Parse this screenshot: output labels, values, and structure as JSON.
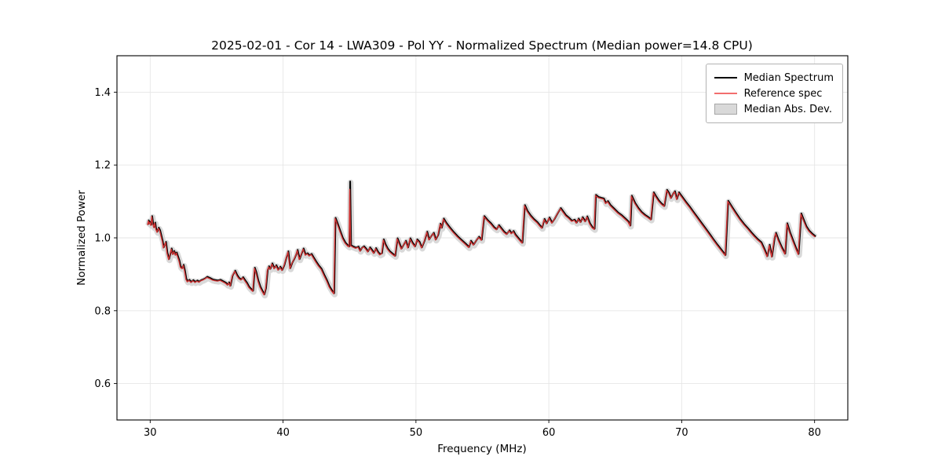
{
  "legend": {
    "items": [
      {
        "label": "Median Spectrum",
        "swatch": "line",
        "color": "#000000"
      },
      {
        "label": "Reference spec",
        "swatch": "line",
        "color": "#f26e6e"
      },
      {
        "label": "Median Abs. Dev.",
        "swatch": "patch",
        "color": "#d9d9d9",
        "edge_color": "#a6a6a6"
      }
    ]
  },
  "chart_data": {
    "type": "line",
    "title": "2025-02-01 - Cor 14 - LWA309 - Pol YY - Normalized Spectrum (Median power=14.8 CPU)",
    "xlabel": "Frequency (MHz)",
    "ylabel": "Normalized Power",
    "xlim": [
      27.5,
      82.5
    ],
    "ylim": [
      0.5,
      1.5
    ],
    "xticks": [
      30,
      40,
      50,
      60,
      70,
      80
    ],
    "yticks": [
      0.6,
      0.8,
      1.0,
      1.2,
      1.4
    ],
    "grid": true,
    "grid_color": "#e6e6e6",
    "spine_color": "#000000",
    "legend_position": "upper right",
    "series": [
      {
        "name": "Median Spectrum",
        "color": "#000000",
        "line_width": 2,
        "points": [
          [
            29.84,
            1.038
          ],
          [
            29.9,
            1.048
          ],
          [
            29.95,
            1.04
          ],
          [
            30.0,
            1.044
          ],
          [
            30.08,
            1.036
          ],
          [
            30.15,
            1.06
          ],
          [
            30.22,
            1.042
          ],
          [
            30.3,
            1.03
          ],
          [
            30.38,
            1.042
          ],
          [
            30.45,
            1.026
          ],
          [
            30.55,
            1.017
          ],
          [
            30.65,
            1.028
          ],
          [
            30.75,
            1.021
          ],
          [
            30.85,
            1.006
          ],
          [
            30.95,
            0.991
          ],
          [
            31.02,
            0.974
          ],
          [
            31.1,
            0.981
          ],
          [
            31.2,
            0.989
          ],
          [
            31.3,
            0.96
          ],
          [
            31.42,
            0.942
          ],
          [
            31.52,
            0.955
          ],
          [
            31.62,
            0.971
          ],
          [
            31.72,
            0.956
          ],
          [
            31.82,
            0.964
          ],
          [
            31.92,
            0.954
          ],
          [
            32.0,
            0.96
          ],
          [
            32.1,
            0.949
          ],
          [
            32.2,
            0.938
          ],
          [
            32.3,
            0.921
          ],
          [
            32.42,
            0.917
          ],
          [
            32.52,
            0.926
          ],
          [
            32.62,
            0.91
          ],
          [
            32.72,
            0.888
          ],
          [
            32.82,
            0.881
          ],
          [
            32.95,
            0.885
          ],
          [
            33.1,
            0.879
          ],
          [
            33.25,
            0.884
          ],
          [
            33.4,
            0.879
          ],
          [
            33.55,
            0.883
          ],
          [
            33.7,
            0.88
          ],
          [
            33.85,
            0.884
          ],
          [
            34.0,
            0.886
          ],
          [
            34.15,
            0.889
          ],
          [
            34.3,
            0.893
          ],
          [
            34.5,
            0.89
          ],
          [
            34.7,
            0.886
          ],
          [
            34.9,
            0.884
          ],
          [
            35.1,
            0.883
          ],
          [
            35.3,
            0.885
          ],
          [
            35.5,
            0.881
          ],
          [
            35.7,
            0.877
          ],
          [
            35.85,
            0.872
          ],
          [
            35.95,
            0.878
          ],
          [
            36.05,
            0.869
          ],
          [
            36.2,
            0.896
          ],
          [
            36.4,
            0.91
          ],
          [
            36.55,
            0.898
          ],
          [
            36.7,
            0.89
          ],
          [
            36.85,
            0.886
          ],
          [
            37.0,
            0.892
          ],
          [
            37.15,
            0.884
          ],
          [
            37.3,
            0.876
          ],
          [
            37.45,
            0.866
          ],
          [
            37.6,
            0.86
          ],
          [
            37.75,
            0.855
          ],
          [
            37.88,
            0.918
          ],
          [
            38.0,
            0.905
          ],
          [
            38.15,
            0.882
          ],
          [
            38.3,
            0.866
          ],
          [
            38.45,
            0.855
          ],
          [
            38.6,
            0.845
          ],
          [
            38.72,
            0.862
          ],
          [
            38.85,
            0.912
          ],
          [
            38.95,
            0.922
          ],
          [
            39.05,
            0.915
          ],
          [
            39.2,
            0.93
          ],
          [
            39.35,
            0.917
          ],
          [
            39.5,
            0.925
          ],
          [
            39.65,
            0.913
          ],
          [
            39.8,
            0.921
          ],
          [
            39.95,
            0.912
          ],
          [
            40.1,
            0.925
          ],
          [
            40.25,
            0.945
          ],
          [
            40.4,
            0.963
          ],
          [
            40.55,
            0.917
          ],
          [
            40.7,
            0.932
          ],
          [
            40.85,
            0.942
          ],
          [
            41.0,
            0.955
          ],
          [
            41.1,
            0.967
          ],
          [
            41.25,
            0.942
          ],
          [
            41.4,
            0.957
          ],
          [
            41.55,
            0.971
          ],
          [
            41.7,
            0.954
          ],
          [
            41.85,
            0.958
          ],
          [
            42.0,
            0.952
          ],
          [
            42.15,
            0.956
          ],
          [
            42.3,
            0.947
          ],
          [
            42.5,
            0.935
          ],
          [
            42.7,
            0.924
          ],
          [
            42.9,
            0.915
          ],
          [
            43.1,
            0.899
          ],
          [
            43.3,
            0.884
          ],
          [
            43.5,
            0.867
          ],
          [
            43.7,
            0.855
          ],
          [
            43.85,
            0.848
          ],
          [
            43.95,
            1.055
          ],
          [
            44.1,
            1.041
          ],
          [
            44.3,
            1.02
          ],
          [
            44.5,
            1.0
          ],
          [
            44.7,
            0.987
          ],
          [
            44.9,
            0.979
          ],
          [
            45.0,
            0.977
          ],
          [
            45.05,
            1.155
          ],
          [
            45.12,
            0.98
          ],
          [
            45.3,
            0.976
          ],
          [
            45.5,
            0.973
          ],
          [
            45.68,
            0.976
          ],
          [
            45.82,
            0.965
          ],
          [
            45.95,
            0.973
          ],
          [
            46.1,
            0.977
          ],
          [
            46.25,
            0.971
          ],
          [
            46.4,
            0.963
          ],
          [
            46.55,
            0.974
          ],
          [
            46.7,
            0.967
          ],
          [
            46.85,
            0.959
          ],
          [
            47.0,
            0.972
          ],
          [
            47.15,
            0.962
          ],
          [
            47.3,
            0.955
          ],
          [
            47.45,
            0.958
          ],
          [
            47.58,
            0.996
          ],
          [
            47.72,
            0.982
          ],
          [
            47.88,
            0.971
          ],
          [
            48.05,
            0.963
          ],
          [
            48.25,
            0.957
          ],
          [
            48.45,
            0.951
          ],
          [
            48.62,
            0.999
          ],
          [
            48.78,
            0.984
          ],
          [
            48.92,
            0.971
          ],
          [
            49.08,
            0.981
          ],
          [
            49.25,
            0.992
          ],
          [
            49.42,
            0.974
          ],
          [
            49.58,
            0.999
          ],
          [
            49.75,
            0.987
          ],
          [
            49.95,
            0.977
          ],
          [
            50.1,
            0.996
          ],
          [
            50.28,
            0.989
          ],
          [
            50.45,
            0.974
          ],
          [
            50.65,
            0.992
          ],
          [
            50.85,
            1.017
          ],
          [
            51.0,
            0.996
          ],
          [
            51.18,
            1.006
          ],
          [
            51.35,
            1.014
          ],
          [
            51.5,
            0.996
          ],
          [
            51.68,
            1.008
          ],
          [
            51.85,
            1.039
          ],
          [
            51.95,
            1.028
          ],
          [
            52.1,
            1.053
          ],
          [
            52.3,
            1.041
          ],
          [
            52.55,
            1.029
          ],
          [
            52.85,
            1.016
          ],
          [
            53.15,
            1.004
          ],
          [
            53.45,
            0.994
          ],
          [
            53.75,
            0.984
          ],
          [
            54.0,
            0.975
          ],
          [
            54.15,
            0.992
          ],
          [
            54.35,
            0.982
          ],
          [
            54.55,
            0.993
          ],
          [
            54.75,
            1.003
          ],
          [
            54.95,
            0.995
          ],
          [
            55.15,
            1.06
          ],
          [
            55.4,
            1.049
          ],
          [
            55.65,
            1.04
          ],
          [
            55.9,
            1.029
          ],
          [
            56.08,
            1.024
          ],
          [
            56.25,
            1.035
          ],
          [
            56.45,
            1.026
          ],
          [
            56.65,
            1.017
          ],
          [
            56.85,
            1.011
          ],
          [
            57.05,
            1.021
          ],
          [
            57.2,
            1.013
          ],
          [
            57.35,
            1.019
          ],
          [
            57.5,
            1.009
          ],
          [
            57.68,
            1.001
          ],
          [
            57.85,
            0.994
          ],
          [
            58.02,
            0.987
          ],
          [
            58.2,
            1.09
          ],
          [
            58.4,
            1.074
          ],
          [
            58.65,
            1.061
          ],
          [
            58.9,
            1.051
          ],
          [
            59.15,
            1.043
          ],
          [
            59.35,
            1.034
          ],
          [
            59.5,
            1.028
          ],
          [
            59.68,
            1.052
          ],
          [
            59.85,
            1.04
          ],
          [
            60.05,
            1.056
          ],
          [
            60.25,
            1.042
          ],
          [
            60.45,
            1.053
          ],
          [
            60.65,
            1.066
          ],
          [
            60.9,
            1.082
          ],
          [
            61.1,
            1.072
          ],
          [
            61.3,
            1.062
          ],
          [
            61.5,
            1.056
          ],
          [
            61.75,
            1.047
          ],
          [
            61.95,
            1.05
          ],
          [
            62.1,
            1.042
          ],
          [
            62.25,
            1.053
          ],
          [
            62.4,
            1.044
          ],
          [
            62.55,
            1.057
          ],
          [
            62.75,
            1.046
          ],
          [
            62.9,
            1.059
          ],
          [
            63.1,
            1.04
          ],
          [
            63.3,
            1.029
          ],
          [
            63.45,
            1.025
          ],
          [
            63.55,
            1.118
          ],
          [
            63.75,
            1.112
          ],
          [
            63.95,
            1.11
          ],
          [
            64.15,
            1.108
          ],
          [
            64.3,
            1.096
          ],
          [
            64.45,
            1.101
          ],
          [
            64.65,
            1.09
          ],
          [
            64.9,
            1.081
          ],
          [
            65.2,
            1.07
          ],
          [
            65.5,
            1.062
          ],
          [
            65.8,
            1.052
          ],
          [
            66.0,
            1.045
          ],
          [
            66.15,
            1.034
          ],
          [
            66.25,
            1.116
          ],
          [
            66.5,
            1.096
          ],
          [
            66.75,
            1.082
          ],
          [
            67.0,
            1.071
          ],
          [
            67.25,
            1.063
          ],
          [
            67.5,
            1.057
          ],
          [
            67.7,
            1.051
          ],
          [
            67.9,
            1.125
          ],
          [
            68.1,
            1.113
          ],
          [
            68.3,
            1.102
          ],
          [
            68.5,
            1.094
          ],
          [
            68.7,
            1.088
          ],
          [
            68.9,
            1.132
          ],
          [
            69.05,
            1.124
          ],
          [
            69.2,
            1.11
          ],
          [
            69.35,
            1.121
          ],
          [
            69.5,
            1.128
          ],
          [
            69.65,
            1.107
          ],
          [
            69.8,
            1.125
          ],
          [
            70.0,
            1.115
          ],
          [
            70.3,
            1.1
          ],
          [
            70.6,
            1.086
          ],
          [
            70.9,
            1.071
          ],
          [
            71.2,
            1.056
          ],
          [
            71.5,
            1.041
          ],
          [
            71.8,
            1.026
          ],
          [
            72.1,
            1.011
          ],
          [
            72.4,
            0.996
          ],
          [
            72.7,
            0.981
          ],
          [
            73.0,
            0.967
          ],
          [
            73.3,
            0.953
          ],
          [
            73.5,
            1.102
          ],
          [
            73.8,
            1.085
          ],
          [
            74.1,
            1.068
          ],
          [
            74.4,
            1.052
          ],
          [
            74.7,
            1.038
          ],
          [
            75.0,
            1.026
          ],
          [
            75.25,
            1.015
          ],
          [
            75.5,
            1.005
          ],
          [
            75.75,
            0.996
          ],
          [
            76.0,
            0.988
          ],
          [
            76.25,
            0.968
          ],
          [
            76.45,
            0.95
          ],
          [
            76.62,
            0.981
          ],
          [
            76.8,
            0.949
          ],
          [
            77.0,
            1.0
          ],
          [
            77.1,
            1.014
          ],
          [
            77.3,
            0.994
          ],
          [
            77.55,
            0.974
          ],
          [
            77.8,
            0.957
          ],
          [
            77.95,
            1.04
          ],
          [
            78.15,
            1.016
          ],
          [
            78.4,
            0.992
          ],
          [
            78.6,
            0.973
          ],
          [
            78.8,
            0.956
          ],
          [
            79.0,
            1.067
          ],
          [
            79.2,
            1.049
          ],
          [
            79.4,
            1.031
          ],
          [
            79.6,
            1.02
          ],
          [
            79.85,
            1.011
          ],
          [
            80.05,
            1.005
          ]
        ]
      },
      {
        "name": "Reference spec",
        "color": "#d13434",
        "line_width": 1.4,
        "same_points_as": 0,
        "overrides": [
          [
            45.05,
            1.135
          ]
        ]
      },
      {
        "name": "Median Abs. Dev.",
        "type": "band",
        "color": "#d2d2d2",
        "around_series": 0,
        "halfwidth": 0.006
      }
    ]
  }
}
